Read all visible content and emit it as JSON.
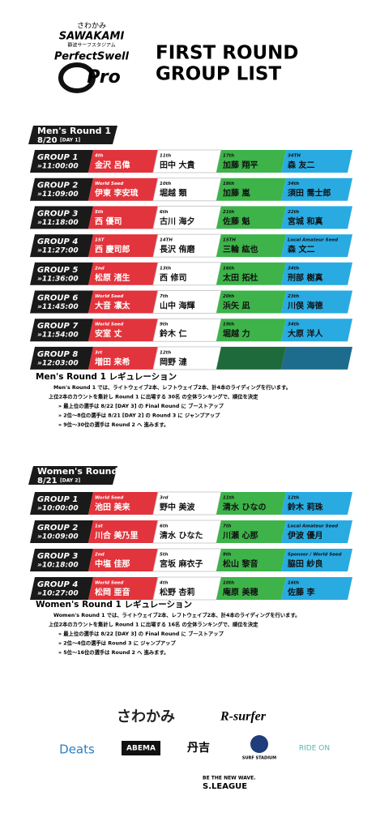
{
  "header": {
    "brand_jp": "さわかみ",
    "brand": "SAWAKAMI",
    "venue": "静波サーフスタジアム",
    "event": "PerfectSwell",
    "event_sub": "Pro",
    "title_1": "FIRST ROUND",
    "title_2": "GROUP LIST"
  },
  "sections": [
    {
      "label": "Men's Round 1",
      "date": "8/20",
      "day": "[DAY 1]",
      "groups": [
        {
          "name": "GROUP 1",
          "time": "»11:00:00",
          "slots": [
            {
              "seed": "4th",
              "name": "金沢 呂偉"
            },
            {
              "seed": "11th",
              "name": "田中 大貴"
            },
            {
              "seed": "17th",
              "name": "加藤 翔平"
            },
            {
              "seed": "34TH",
              "name": "森 友二"
            }
          ]
        },
        {
          "name": "GROUP 2",
          "time": "»11:09:00",
          "slots": [
            {
              "seed": "World Seed",
              "name": "伊東 李安琉"
            },
            {
              "seed": "10th",
              "name": "堀越 類"
            },
            {
              "seed": "18th",
              "name": "加藤 嵐"
            },
            {
              "seed": "34th",
              "name": "須田 喬士郎"
            }
          ]
        },
        {
          "name": "GROUP 3",
          "time": "»11:18:00",
          "slots": [
            {
              "seed": "5th",
              "name": "西 優司"
            },
            {
              "seed": "6th",
              "name": "古川 海夕"
            },
            {
              "seed": "21th",
              "name": "佐藤 魁"
            },
            {
              "seed": "22th",
              "name": "宮城 和真"
            }
          ]
        },
        {
          "name": "GROUP 4",
          "time": "»11:27:00",
          "slots": [
            {
              "seed": "1ST",
              "name": "西 慶司郎"
            },
            {
              "seed": "14TH",
              "name": "長沢 侑磨"
            },
            {
              "seed": "15TH",
              "name": "三輪 紘也"
            },
            {
              "seed": "Local Amateur Seed",
              "name": "森 文二"
            }
          ]
        },
        {
          "name": "GROUP 5",
          "time": "»11:36:00",
          "slots": [
            {
              "seed": "2nd",
              "name": "松原 渚生"
            },
            {
              "seed": "13th",
              "name": "西 修司"
            },
            {
              "seed": "16th",
              "name": "太田 拓杜"
            },
            {
              "seed": "34th",
              "name": "刑部 樹真"
            }
          ]
        },
        {
          "name": "GROUP 6",
          "time": "»11:45:00",
          "slots": [
            {
              "seed": "World Seed",
              "name": "大音 凛太"
            },
            {
              "seed": "7th",
              "name": "山中 海輝"
            },
            {
              "seed": "20th",
              "name": "浜矢 凪"
            },
            {
              "seed": "23th",
              "name": "川俣 海徳"
            }
          ]
        },
        {
          "name": "GROUP 7",
          "time": "»11:54:00",
          "slots": [
            {
              "seed": "World Seed",
              "name": "安室 丈"
            },
            {
              "seed": "9th",
              "name": "鈴木 仁"
            },
            {
              "seed": "19th",
              "name": "堀越 力"
            },
            {
              "seed": "34th",
              "name": "大原 洋人"
            }
          ]
        },
        {
          "name": "GROUP 8",
          "time": "»12:03:00",
          "slots": [
            {
              "seed": "3rt",
              "name": "増田 来希"
            },
            {
              "seed": "12th",
              "name": "岡野 漣"
            }
          ]
        }
      ],
      "regulation": {
        "title": "Men's Round 1 レギュレーション",
        "lines": [
          "Men's Round 1 では、ライトウェイブ2本、レフトウェイブ2本、計4本のライディングを行います。",
          "上位2本のカウントを集計し Round 1 に出場する 30名 の全体ランキングで、順位を決定",
          "» 最上位の選手は 8/22 [DAY 3] の Final Round に ブーストアップ",
          "» 2位〜8位の選手は 8/21 [DAY 2] の Round 3 に ジャンプアップ",
          "» 9位〜30位の選手は Round 2 へ 進みます。"
        ]
      }
    },
    {
      "label": "Women's Round 1",
      "date": "8/21",
      "day": "[DAY 2]",
      "groups": [
        {
          "name": "GROUP 1",
          "time": "»10:00:00",
          "slots": [
            {
              "seed": "World Seed",
              "name": "池田 美来"
            },
            {
              "seed": "3rd",
              "name": "野中 美波"
            },
            {
              "seed": "11th",
              "name": "清水 ひなの"
            },
            {
              "seed": "12th",
              "name": "鈴木 莉珠"
            }
          ]
        },
        {
          "name": "GROUP 2",
          "time": "»10:09:00",
          "slots": [
            {
              "seed": "1st",
              "name": "川合 美乃里"
            },
            {
              "seed": "6th",
              "name": "清水 ひなた"
            },
            {
              "seed": "7th",
              "name": "川瀬 心那"
            },
            {
              "seed": "Local Amateur Seed",
              "name": "伊波 優月"
            }
          ]
        },
        {
          "name": "GROUP 3",
          "time": "»10:18:00",
          "slots": [
            {
              "seed": "2nd",
              "name": "中塩 佳那"
            },
            {
              "seed": "5th",
              "name": "宮坂 麻衣子"
            },
            {
              "seed": "9th",
              "name": "松山 黎音"
            },
            {
              "seed": "Sponsor / World Seed",
              "name": "脇田 紗良"
            }
          ]
        },
        {
          "name": "GROUP 4",
          "time": "»10:27:00",
          "slots": [
            {
              "seed": "World Seed",
              "name": "松岡 亜音"
            },
            {
              "seed": "4th",
              "name": "松野 杏莉"
            },
            {
              "seed": "10th",
              "name": "庵原 美穂"
            },
            {
              "seed": "16th",
              "name": "佐藤 李"
            }
          ]
        }
      ],
      "regulation": {
        "title": "Women's Round 1 レギュレーション",
        "lines": [
          "Women's Round 1 では、ライトウェイブ2本、レフトウェイブ2本、計4本のライディングを行います。",
          "上位2本のカウントを集計し Round 1 に出場する 16名 の全体ランキングで、順位を決定",
          "» 最上位の選手は 8/22 [DAY 3] の Final Round に ブーストアップ",
          "» 2位〜4位の選手は Round 3 に ジャンプアップ",
          "» 5位〜16位の選手は Round 2 へ 進みます。"
        ]
      }
    }
  ],
  "sponsors": {
    "row_1": [
      "さわかみ",
      "R-surfer"
    ],
    "row_2": [
      "Deats",
      "ABEMA",
      "丹吉",
      "SURF STADIUM",
      "RIDE ON"
    ],
    "tagline": "BE THE NEW WAVE.",
    "league": "S.LEAGUE"
  }
}
